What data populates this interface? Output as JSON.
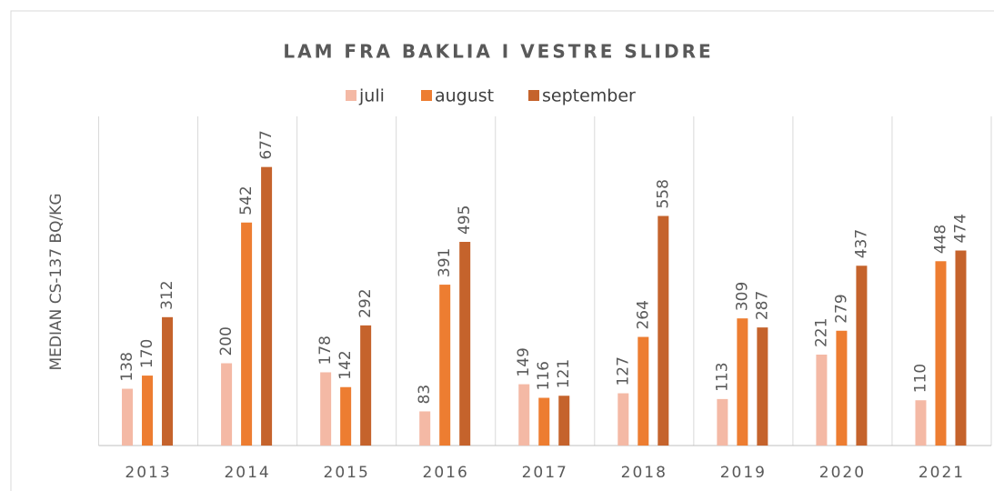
{
  "chart_data": {
    "type": "bar",
    "title": "LAM FRA BAKLIA I VESTRE SLIDRE",
    "y_label": "MEDIAN CS-137 BQ/KG",
    "categories": [
      "2013",
      "2014",
      "2015",
      "2016",
      "2017",
      "2018",
      "2019",
      "2020",
      "2021"
    ],
    "series": [
      {
        "name": "juli",
        "color": "#f4b9a5",
        "values": [
          138,
          200,
          178,
          83,
          149,
          127,
          113,
          221,
          110
        ]
      },
      {
        "name": "august",
        "color": "#ed7d31",
        "values": [
          170,
          542,
          142,
          391,
          116,
          264,
          309,
          279,
          448
        ]
      },
      {
        "name": "september",
        "color": "#c5632c",
        "values": [
          312,
          677,
          292,
          495,
          121,
          558,
          287,
          437,
          474
        ]
      }
    ],
    "ylim": [
      0,
      800
    ],
    "legend": "top"
  }
}
